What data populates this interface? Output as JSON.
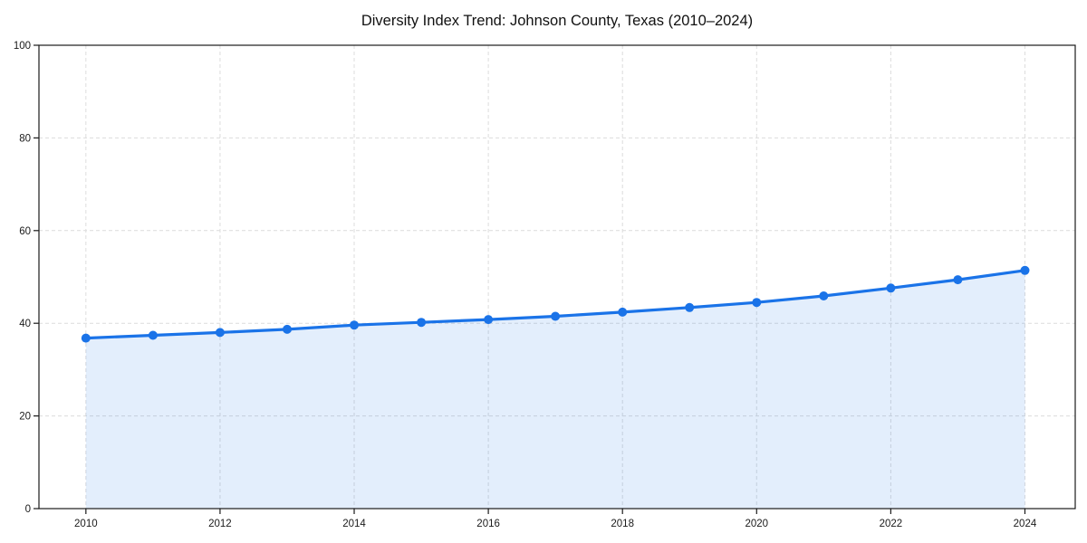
{
  "chart_data": {
    "type": "line",
    "title": "Diversity Index Trend: Johnson County, Texas (2010–2024)",
    "x": [
      2010,
      2011,
      2012,
      2013,
      2014,
      2015,
      2016,
      2017,
      2018,
      2019,
      2020,
      2021,
      2022,
      2023,
      2024
    ],
    "values": [
      36.8,
      37.4,
      38.0,
      38.7,
      39.6,
      40.2,
      40.8,
      41.5,
      42.4,
      43.4,
      44.5,
      45.9,
      47.6,
      49.4,
      51.4
    ],
    "xlabel": "",
    "ylabel": "",
    "ylim": [
      0,
      100
    ],
    "xlim": [
      2009.3,
      2024.75
    ],
    "yticks": [
      0,
      20,
      40,
      60,
      80,
      100
    ],
    "xticks": [
      2010,
      2012,
      2014,
      2016,
      2018,
      2020,
      2022,
      2024
    ],
    "grid": true,
    "legend": false,
    "area_fill": true,
    "marker": "circle",
    "line_color": "#1a73e8",
    "fill_color": "#1a73e8",
    "fill_opacity": 0.12,
    "background_color": "#ffffff",
    "grid_color": "#dcdcdc",
    "axis_color": "#1a1a1a"
  }
}
